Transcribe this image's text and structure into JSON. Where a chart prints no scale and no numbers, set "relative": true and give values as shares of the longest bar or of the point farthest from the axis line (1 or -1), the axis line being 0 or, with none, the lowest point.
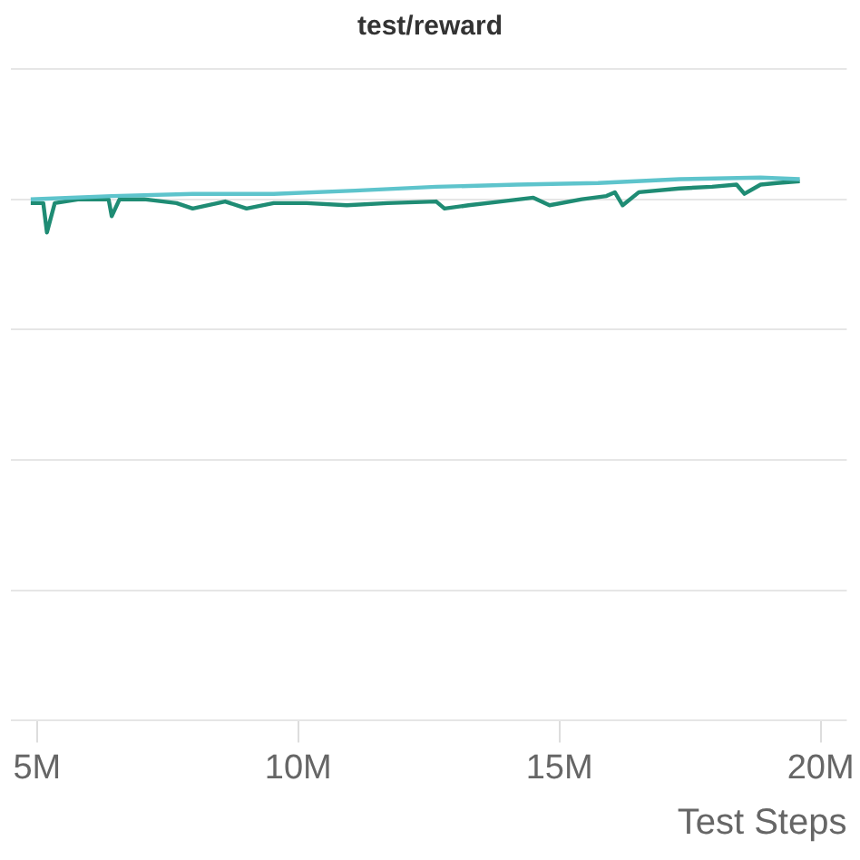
{
  "chart_data": {
    "type": "line",
    "title": "test/reward",
    "xlabel": "Test Steps",
    "relative": true,
    "grid": "y",
    "marker": "none",
    "line_style": "solid",
    "xlim": [
      4500000,
      20500000
    ],
    "xticks": [
      {
        "value": 5000000,
        "label": "5M"
      },
      {
        "value": 10000000,
        "label": "10M"
      },
      {
        "value": 15000000,
        "label": "15M"
      },
      {
        "value": 20000000,
        "label": "20M"
      }
    ],
    "series": [
      {
        "color": "#5ec4cc",
        "x": [
          4880000,
          6430000,
          7980000,
          9530000,
          11090000,
          12640000,
          14190000,
          15740000,
          17300000,
          18850000,
          19600000
        ],
        "values": [
          0.96,
          0.966,
          0.97,
          0.97,
          0.976,
          0.983,
          0.987,
          0.99,
          0.997,
          1.0,
          0.997
        ]
      },
      {
        "color": "#1f8c74",
        "x": [
          4880000,
          5120000,
          5190000,
          5340000,
          5810000,
          6370000,
          6430000,
          6580000,
          7050000,
          7670000,
          7980000,
          8600000,
          9010000,
          9530000,
          10160000,
          10930000,
          11710000,
          12640000,
          12800000,
          13260000,
          13880000,
          14500000,
          14810000,
          15430000,
          15900000,
          16060000,
          16210000,
          16520000,
          17300000,
          17920000,
          18390000,
          18540000,
          18850000,
          19160000,
          19600000
        ],
        "values": [
          0.953,
          0.953,
          0.899,
          0.953,
          0.96,
          0.96,
          0.929,
          0.96,
          0.96,
          0.953,
          0.943,
          0.956,
          0.943,
          0.953,
          0.953,
          0.949,
          0.953,
          0.956,
          0.943,
          0.949,
          0.956,
          0.963,
          0.949,
          0.96,
          0.966,
          0.973,
          0.949,
          0.973,
          0.98,
          0.983,
          0.987,
          0.97,
          0.987,
          0.99,
          0.993
        ]
      }
    ]
  }
}
